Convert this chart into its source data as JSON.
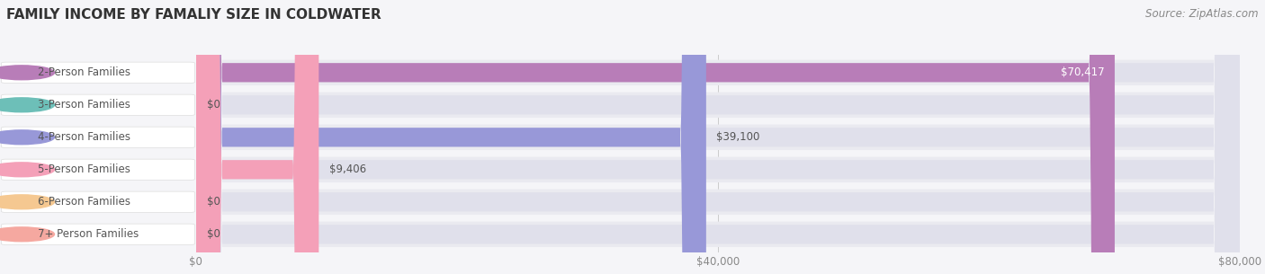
{
  "title": "FAMILY INCOME BY FAMALIY SIZE IN COLDWATER",
  "source": "Source: ZipAtlas.com",
  "categories": [
    "2-Person Families",
    "3-Person Families",
    "4-Person Families",
    "5-Person Families",
    "6-Person Families",
    "7+ Person Families"
  ],
  "values": [
    70417,
    0,
    39100,
    9406,
    0,
    0
  ],
  "bar_colors": [
    "#b87db8",
    "#6dbfb8",
    "#9898d8",
    "#f4a0b8",
    "#f5c891",
    "#f5a8a0"
  ],
  "value_labels": [
    "$70,417",
    "$0",
    "$39,100",
    "$9,406",
    "$0",
    "$0"
  ],
  "value_label_colors": [
    "#ffffff",
    "#555555",
    "#555555",
    "#555555",
    "#555555",
    "#555555"
  ],
  "bg_color": "#f5f5f8",
  "row_bg_color": "#eaeaf0",
  "bar_bg_color": "#e0e0eb",
  "xlim": [
    0,
    80000
  ],
  "xtick_values": [
    0,
    40000,
    80000
  ],
  "xtick_labels": [
    "$0",
    "$40,000",
    "$80,000"
  ],
  "title_fontsize": 11,
  "label_fontsize": 8.5,
  "value_fontsize": 8.5,
  "source_fontsize": 8.5,
  "pill_label_color": "#555555",
  "grid_color": "#cccccc"
}
